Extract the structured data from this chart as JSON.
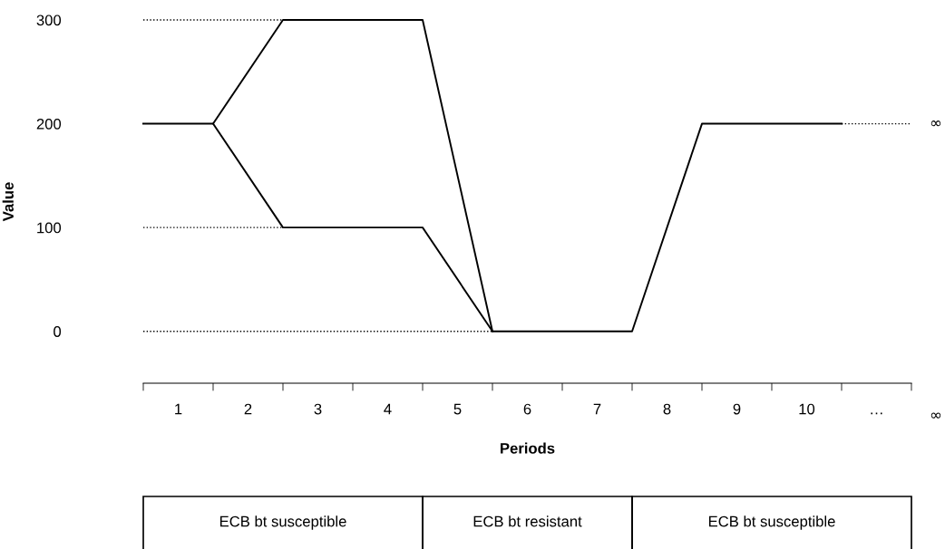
{
  "chart_data": {
    "type": "line",
    "xlabel": "Periods",
    "ylabel": "Value",
    "xlim": [
      0.5,
      11.5
    ],
    "ylim": [
      -50,
      300
    ],
    "yticks": [
      0,
      100,
      200,
      300
    ],
    "xticks": [
      1,
      2,
      3,
      4,
      5,
      6,
      7,
      8,
      9,
      10,
      {
        "value": 11,
        "label": "…"
      },
      {
        "value": 0.5,
        "label": null
      },
      {
        "value": 1.5,
        "label": null
      },
      {
        "value": 2.5,
        "label": null
      },
      {
        "value": 3.5,
        "label": null
      },
      {
        "value": 4.5,
        "label": null
      },
      {
        "value": 5.5,
        "label": null
      },
      {
        "value": 6.5,
        "label": null
      },
      {
        "value": 7.5,
        "label": null
      },
      {
        "value": 8.5,
        "label": null
      },
      {
        "value": 9.5,
        "label": null
      },
      {
        "value": 10.5,
        "label": null
      },
      {
        "value": 11.5,
        "label": null
      }
    ],
    "grid": false,
    "legend": false,
    "marker": "none",
    "line_style": "solid",
    "series": [
      {
        "color": "#000000",
        "x": [
          0.5,
          1.5,
          2.5,
          4.5,
          5.5,
          7.5,
          8.5,
          10.5
        ],
        "values": [
          200,
          200,
          300,
          300,
          0,
          0,
          200,
          200
        ]
      },
      {
        "color": "#000000",
        "x": [
          1.5,
          2.5,
          4.5,
          5.5
        ],
        "values": [
          200,
          100,
          100,
          0
        ]
      },
      {
        "color": "#000000",
        "line_style": "dotted",
        "x": [
          0.5,
          2.5
        ],
        "values": [
          300,
          300
        ]
      },
      {
        "color": "#000000",
        "line_style": "dotted",
        "x": [
          0.5,
          2.5
        ],
        "values": [
          100,
          100
        ]
      },
      {
        "color": "#000000",
        "line_style": "dotted",
        "x": [
          0.5,
          5.5
        ],
        "values": [
          0,
          0
        ]
      },
      {
        "color": "#000000",
        "line_style": "dotted",
        "x": [
          10.5,
          11.5
        ],
        "values": [
          200,
          200
        ]
      }
    ],
    "annotations": [
      "∞",
      "∞",
      "ECB bt susceptible",
      "ECB bt resistant",
      "ECB bt susceptible"
    ]
  }
}
